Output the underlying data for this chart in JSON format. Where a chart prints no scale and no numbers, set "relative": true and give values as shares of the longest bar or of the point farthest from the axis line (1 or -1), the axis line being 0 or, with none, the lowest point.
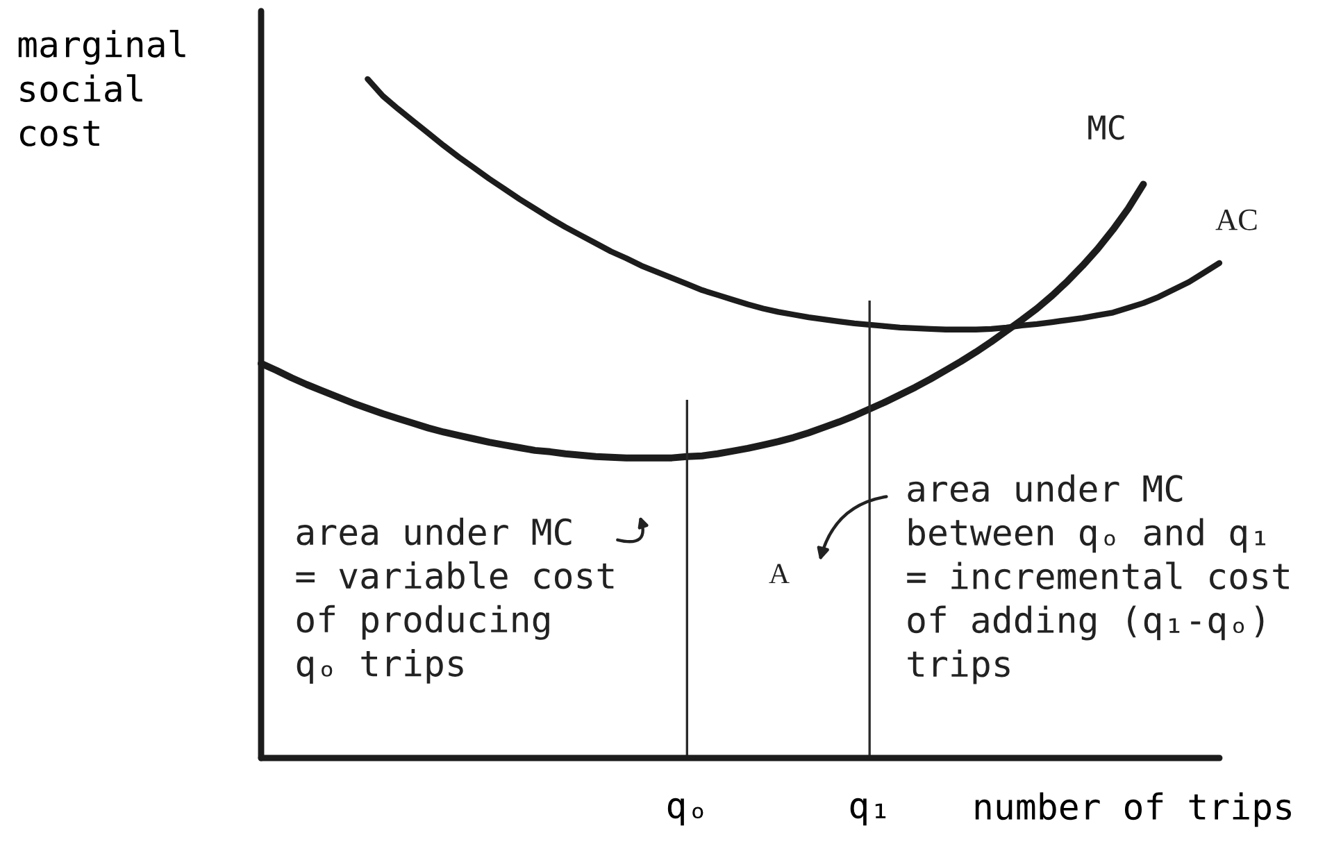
{
  "chart_data": {
    "type": "line",
    "relative": true,
    "tick_labels": "x",
    "ylabel": "marginal\nsocial\ncost",
    "xlabel": "number of trips",
    "categories": [
      null,
      null,
      null,
      null,
      null,
      null,
      null,
      null,
      null,
      null,
      null,
      null,
      null,
      null,
      null,
      null,
      null,
      null,
      null,
      null,
      null,
      null,
      null,
      null,
      null,
      null,
      null,
      null,
      "qₒ",
      null,
      null,
      null,
      null,
      null,
      null,
      null,
      null,
      null,
      null,
      null,
      "q₁",
      null,
      null,
      null,
      null,
      null,
      null,
      null,
      null,
      null,
      null,
      null,
      null,
      null,
      null,
      null,
      null,
      null,
      null,
      null,
      null,
      null,
      null,
      null
    ],
    "series": [
      {
        "name": "MC",
        "color": "#1c1c1c",
        "values": [
          0.581,
          0.571,
          0.56,
          0.55,
          0.541,
          0.532,
          0.523,
          0.515,
          0.507,
          0.5,
          0.493,
          0.486,
          0.48,
          0.475,
          0.47,
          0.465,
          0.461,
          0.457,
          0.453,
          0.451,
          0.448,
          0.446,
          0.444,
          0.443,
          0.442,
          0.442,
          0.442,
          0.442,
          0.444,
          0.445,
          0.448,
          0.452,
          0.456,
          0.461,
          0.466,
          0.472,
          0.479,
          0.487,
          0.495,
          0.504,
          0.514,
          0.524,
          0.535,
          0.546,
          0.558,
          0.571,
          0.584,
          0.598,
          0.613,
          0.629,
          0.645,
          0.662,
          0.681,
          0.702,
          0.725,
          0.75,
          0.778,
          0.809,
          0.845,
          null,
          null,
          null,
          null,
          null
        ]
      },
      {
        "name": "AC",
        "color": "#1c1c1c",
        "values": [
          null,
          null,
          null,
          null,
          null,
          null,
          null,
          1.0,
          0.975,
          0.956,
          0.938,
          0.92,
          0.902,
          0.885,
          0.869,
          0.853,
          0.838,
          0.823,
          0.809,
          0.795,
          0.782,
          0.77,
          0.758,
          0.746,
          0.736,
          0.725,
          0.716,
          0.707,
          0.698,
          0.689,
          0.682,
          0.675,
          0.668,
          0.662,
          0.657,
          0.653,
          0.649,
          0.646,
          0.643,
          0.64,
          0.638,
          0.636,
          0.634,
          0.633,
          0.632,
          0.631,
          0.631,
          0.631,
          0.632,
          0.634,
          0.637,
          0.639,
          0.642,
          0.645,
          0.648,
          0.652,
          0.656,
          0.663,
          0.67,
          0.679,
          0.69,
          0.701,
          0.715,
          0.729
        ]
      }
    ],
    "ref_lines": [
      {
        "axis": "x",
        "value": "qₒ"
      },
      {
        "axis": "x",
        "value": "q₁"
      }
    ],
    "annotations": [
      "area under MC\n= variable cost\nof producing\nqₒ trips",
      "A",
      "area under MC\nbetween qₒ and q₁\n= incremental cost\nof adding (q₁-qₒ)\ntrips"
    ]
  }
}
